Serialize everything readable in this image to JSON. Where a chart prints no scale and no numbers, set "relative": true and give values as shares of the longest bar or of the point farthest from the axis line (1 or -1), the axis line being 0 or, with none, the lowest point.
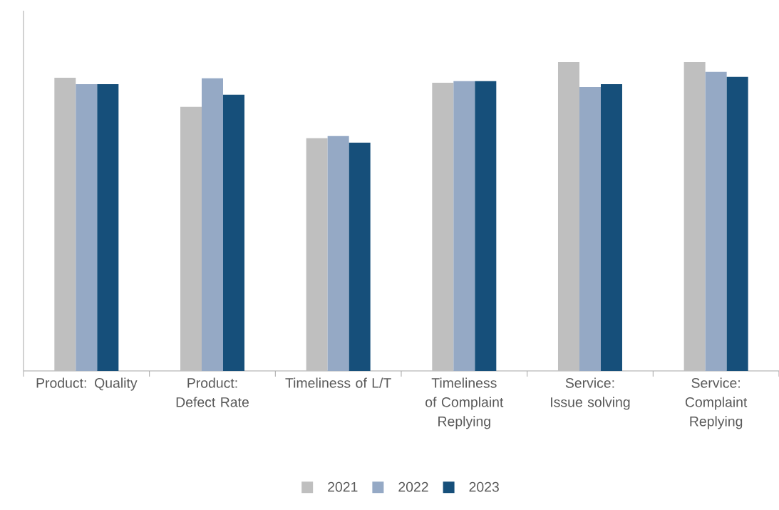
{
  "chart_data": {
    "type": "bar",
    "relative": true,
    "categories": [
      "Product: Quality",
      "Product: Defect Rate",
      "Timeliness of L/T",
      "Timeliness of Complaint Replying",
      "Service: Issue solving",
      "Service: Complaint Replying"
    ],
    "series": [
      {
        "name": "2021",
        "color": "#bfbfbf",
        "values": [
          0.949,
          0.855,
          0.753,
          0.933,
          1.0,
          1.0
        ]
      },
      {
        "name": "2022",
        "color": "#95a9c5",
        "values": [
          0.928,
          0.947,
          0.76,
          0.938,
          0.919,
          0.968
        ]
      },
      {
        "name": "2023",
        "color": "#164f7a",
        "values": [
          0.928,
          0.894,
          0.739,
          0.938,
          0.928,
          0.952
        ]
      }
    ],
    "legend": "bottom"
  }
}
